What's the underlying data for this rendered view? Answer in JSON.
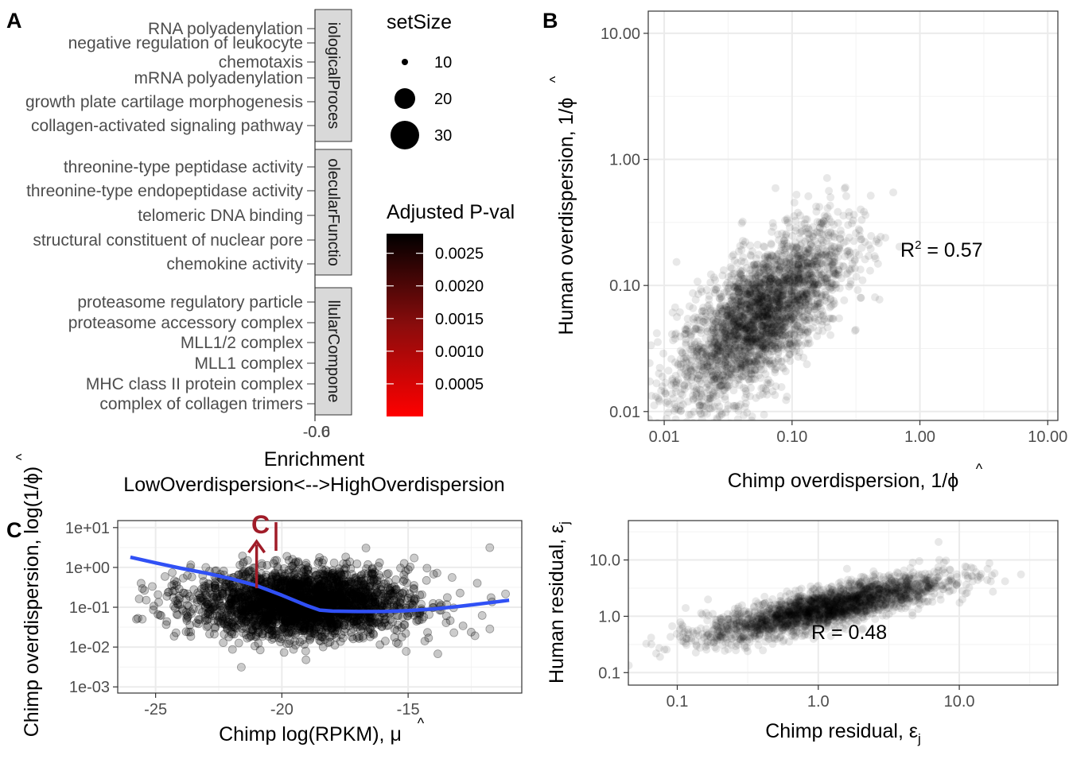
{
  "panels": {
    "a": "A",
    "b": "B",
    "c": "C"
  },
  "colors": {
    "point": "#000000",
    "smooth": "#3050f5",
    "arrow": "#a01c28",
    "grid": "#ebebeb",
    "strip": "#d9d9d9",
    "high": "#000000",
    "low": "#ff0000"
  },
  "chart_data": [
    {
      "id": "A",
      "type": "dot",
      "title": "",
      "xlabel": "Enrichment",
      "xlabel2": "LowOverdispersion<-->HighOverdispersion",
      "xticks_overlapped": "-0.6",
      "xticks_overlapped_b": "0.0",
      "facets": [
        {
          "name": "iologicalProces",
          "terms": [
            "RNA polyadenylation",
            "negative regulation of leukocyte",
            "chemotaxis",
            "mRNA polyadenylation",
            "growth plate cartilage morphogenesis",
            "collagen-activated signaling pathway"
          ]
        },
        {
          "name": "olecularFunctio",
          "terms": [
            "threonine-type peptidase activity",
            "threonine-type endopeptidase activity",
            "telomeric DNA binding",
            "structural constituent of nuclear pore",
            "chemokine activity"
          ]
        },
        {
          "name": "llularCompone",
          "terms": [
            "proteasome regulatory particle",
            "proteasome accessory complex",
            "MLL1/2 complex",
            "MLL1 complex",
            "MHC class II protein complex",
            "complex of collagen trimers"
          ]
        }
      ],
      "legend_size": {
        "title": "setSize",
        "values": [
          10,
          20,
          30
        ],
        "labels": [
          "10",
          "20",
          "30"
        ]
      },
      "legend_color": {
        "title": "Adjusted P-val",
        "range": [
          0.0,
          0.0028
        ],
        "ticks": [
          0.0025,
          0.002,
          0.0015,
          0.001,
          0.0005
        ],
        "labels": [
          "0.0025",
          "0.0020",
          "0.0015",
          "0.0010",
          "0.0005"
        ]
      }
    },
    {
      "id": "B",
      "type": "scatter",
      "xscale": "log",
      "yscale": "log",
      "xlim": [
        0.0075,
        12
      ],
      "ylim": [
        0.0085,
        15
      ],
      "xlabel": "Chimp overdispersion, 1/",
      "ylabel": "Human overdispersion, 1/",
      "phi": "ϕ",
      "hat": "^",
      "xticks": [
        0.01,
        0.1,
        1,
        10
      ],
      "xtick_labels": [
        "0.01",
        "0.10",
        "1.00",
        "10.00"
      ],
      "yticks": [
        0.01,
        0.1,
        1,
        10
      ],
      "ytick_labels": [
        "0.01",
        "0.10",
        "1.00",
        "10.00"
      ],
      "annotation": {
        "text": "R",
        "sup": "2",
        "rest": " =  0.57"
      },
      "cloud": {
        "center_log": [
          -1.25,
          -1.25
        ],
        "slope": 0.75,
        "spread": 0.26,
        "n": 3000
      }
    },
    {
      "id": "C",
      "type": "scatter",
      "yscale": "log",
      "xlim": [
        -26.5,
        -10.5
      ],
      "ylim": [
        0.0007,
        15
      ],
      "xlabel": "Chimp log(RPKM), ",
      "ylabel": "Chimp overdispersion, log(1/",
      "ylabel_close": ")",
      "mu": "μ",
      "phi": "ϕ",
      "hat": "^",
      "xticks": [
        -25,
        -20,
        -15
      ],
      "xtick_labels": [
        "-25",
        "-20",
        "-15"
      ],
      "yticks": [
        10,
        1,
        0.1,
        0.01,
        0.001
      ],
      "ytick_labels": [
        "1e+01",
        "1e+00",
        "1e-01",
        "1e-02",
        "1e-03"
      ],
      "smooth": {
        "x": [
          -26,
          -25,
          -24,
          -23,
          -22,
          -21,
          -20,
          -19,
          -18.5,
          -18,
          -17,
          -16,
          -15,
          -14,
          -13,
          -12,
          -11
        ],
        "y": [
          1.8,
          1.3,
          0.95,
          0.72,
          0.52,
          0.35,
          0.2,
          0.11,
          0.085,
          0.08,
          0.078,
          0.078,
          0.082,
          0.09,
          0.105,
          0.125,
          0.15
        ]
      },
      "arrow": {
        "x": -21,
        "y_from": 0.3,
        "y_to": 4.5
      },
      "annotation": {
        "text": "C"
      }
    },
    {
      "id": "D",
      "type": "scatter",
      "xscale": "log",
      "yscale": "log",
      "xlim": [
        0.045,
        50
      ],
      "ylim": [
        0.06,
        50
      ],
      "xlabel": "Chimp residual, ",
      "ylabel": "Human residual, ",
      "eps": "ε",
      "sub": "j",
      "xticks": [
        0.1,
        1,
        10
      ],
      "xtick_labels": [
        "0.1",
        "1.0",
        "10.0"
      ],
      "yticks": [
        0.1,
        1,
        10
      ],
      "ytick_labels": [
        "0.1",
        "1.0",
        "10.0"
      ],
      "annotation": {
        "text": "R",
        "rest": " =  0.48"
      },
      "cloud": {
        "center_log": [
          0.05,
          0.15
        ],
        "slope": 0.55,
        "spread": 0.17,
        "n": 2400
      }
    }
  ]
}
